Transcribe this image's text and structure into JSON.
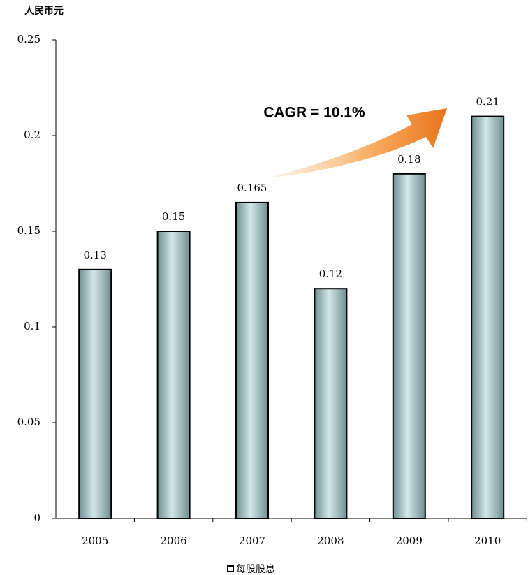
{
  "chart_data": {
    "type": "bar",
    "y_unit_label": "人民币元",
    "annotation": "CAGR = 10.1%",
    "categories": [
      "2005",
      "2006",
      "2007",
      "2008",
      "2009",
      "2010"
    ],
    "series": [
      {
        "name": "每股股息",
        "values": [
          0.13,
          0.15,
          0.165,
          0.12,
          0.18,
          0.21
        ]
      }
    ],
    "ylim": [
      0,
      0.25
    ],
    "yticks": [
      0,
      0.05,
      0.1,
      0.15,
      0.2,
      0.25
    ],
    "legend": "bottom"
  }
}
